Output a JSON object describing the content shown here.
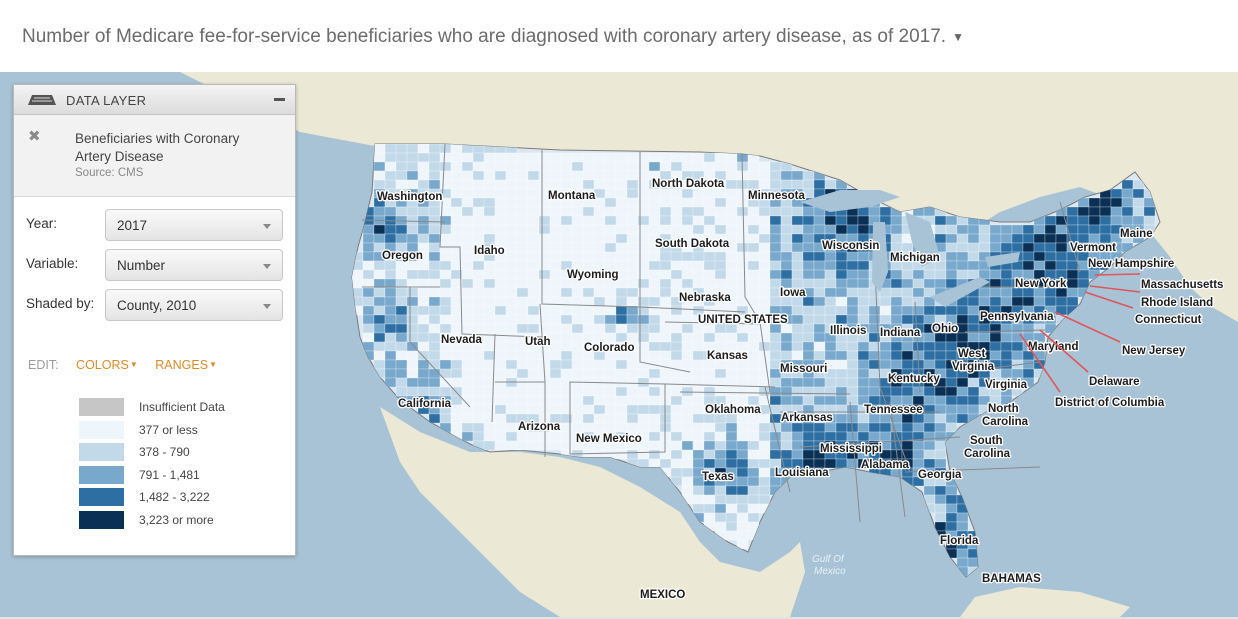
{
  "header": {
    "title": "Number of Medicare fee-for-service beneficiaries who are diagnosed with coronary artery disease, as of 2017.",
    "dropdown_icon": "caret-down-icon"
  },
  "panel": {
    "title": "DATA LAYER",
    "layer_name": "Beneficiaries with Coronary Artery Disease",
    "source": "Source: CMS",
    "controls": {
      "year_label": "Year:",
      "year_value": "2017",
      "variable_label": "Variable:",
      "variable_value": "Number",
      "shaded_label": "Shaded by:",
      "shaded_value": "County, 2010"
    },
    "edit": {
      "label": "EDIT:",
      "colors": "COLORS",
      "ranges": "RANGES"
    },
    "legend": [
      {
        "label": "Insufficient Data",
        "color": "#c6c6c6"
      },
      {
        "label": "377 or less",
        "color": "#eef5fb"
      },
      {
        "label": "378 - 790",
        "color": "#c2d9ea"
      },
      {
        "label": "791 - 1,481",
        "color": "#78a8cc"
      },
      {
        "label": "1,482 - 3,222",
        "color": "#2e6fa3"
      },
      {
        "label": "3,223 or more",
        "color": "#0b3055"
      }
    ]
  },
  "map": {
    "country_label": "UNITED STATES",
    "states": [
      "Washington",
      "Montana",
      "North Dakota",
      "Minnesota",
      "Oregon",
      "Idaho",
      "South Dakota",
      "Wisconsin",
      "Michigan",
      "Maine",
      "Vermont",
      "New Hampshire",
      "Wyoming",
      "New York",
      "Massachusetts",
      "Rhode Island",
      "Iowa",
      "Nebraska",
      "Pennsylvania",
      "Connecticut",
      "Nevada",
      "Utah",
      "Colorado",
      "Illinois",
      "Indiana",
      "Ohio",
      "Kansas",
      "Maryland",
      "New Jersey",
      "West Virginia",
      "Missouri",
      "Kentucky",
      "Virginia",
      "Delaware",
      "District of Columbia",
      "California",
      "Oklahoma",
      "Tennessee",
      "North Carolina",
      "Arkansas",
      "Arizona",
      "New Mexico",
      "South Carolina",
      "Mississippi",
      "Alabama",
      "Georgia",
      "Texas",
      "Louisiana",
      "Florida"
    ],
    "places": [
      "MEXICO",
      "BAHAMAS"
    ],
    "water": [
      "Gulf Of Mexico"
    ],
    "colors": {
      "water": "#a8c3d6",
      "land": "#ece8d6"
    }
  }
}
